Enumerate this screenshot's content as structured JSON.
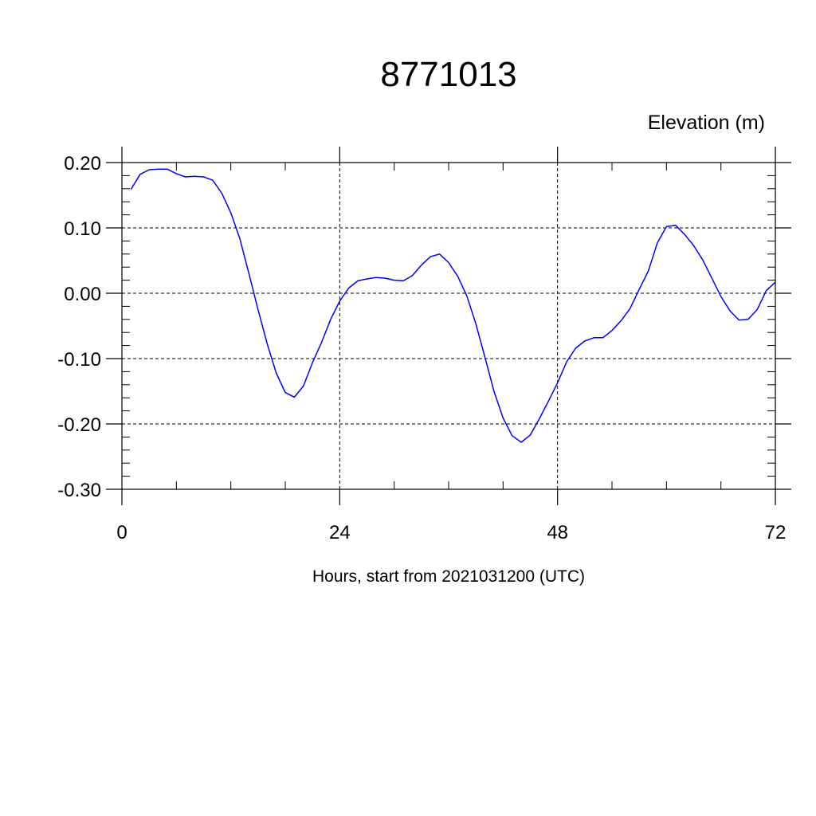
{
  "chart_data": {
    "type": "line",
    "title": "8771013",
    "ylabel": "Elevation (m)",
    "xlabel": "Hours, start from 2021031200 (UTC)",
    "xlim": [
      0,
      72
    ],
    "ylim": [
      -0.3,
      0.2
    ],
    "x_ticks": [
      0,
      24,
      48,
      72
    ],
    "x_tick_labels": [
      "0",
      "24",
      "48",
      "72"
    ],
    "x_minor_step": 6,
    "y_ticks": [
      0.2,
      0.1,
      0.0,
      -0.1,
      -0.2,
      -0.3
    ],
    "y_tick_labels": [
      "0.20",
      "0.10",
      "0.00",
      "-0.10",
      "-0.20",
      "-0.30"
    ],
    "y_minor_step": 0.02,
    "grid": true,
    "series": [
      {
        "color": "#0000ff",
        "x": [
          1,
          2,
          3,
          4,
          5,
          6,
          7,
          8,
          9,
          10,
          11,
          12,
          13,
          14,
          15,
          16,
          17,
          18,
          19,
          20,
          21,
          22,
          23,
          24,
          25,
          26,
          27,
          28,
          29,
          30,
          31,
          32,
          33,
          34,
          35,
          36,
          37,
          38,
          39,
          40,
          41,
          42,
          43,
          44,
          45,
          46,
          47,
          48,
          49,
          50,
          51,
          52,
          53,
          54,
          55,
          56,
          57,
          58,
          59,
          60,
          61,
          62,
          63,
          64,
          65,
          66,
          67,
          68,
          69,
          70,
          71,
          72
        ],
        "y": [
          0.159,
          0.182,
          0.189,
          0.19,
          0.19,
          0.183,
          0.178,
          0.179,
          0.178,
          0.173,
          0.153,
          0.123,
          0.083,
          0.03,
          -0.025,
          -0.077,
          -0.122,
          -0.152,
          -0.159,
          -0.142,
          -0.106,
          -0.075,
          -0.04,
          -0.012,
          0.008,
          0.019,
          0.022,
          0.024,
          0.023,
          0.02,
          0.019,
          0.027,
          0.043,
          0.056,
          0.06,
          0.047,
          0.026,
          -0.004,
          -0.047,
          -0.098,
          -0.15,
          -0.191,
          -0.218,
          -0.228,
          -0.217,
          -0.192,
          -0.165,
          -0.137,
          -0.105,
          -0.084,
          -0.073,
          -0.068,
          -0.068,
          -0.057,
          -0.042,
          -0.023,
          0.006,
          0.034,
          0.077,
          0.102,
          0.104,
          0.09,
          0.073,
          0.051,
          0.023,
          -0.005,
          -0.027,
          -0.041,
          -0.04,
          -0.025,
          0.004,
          0.017
        ]
      }
    ]
  }
}
